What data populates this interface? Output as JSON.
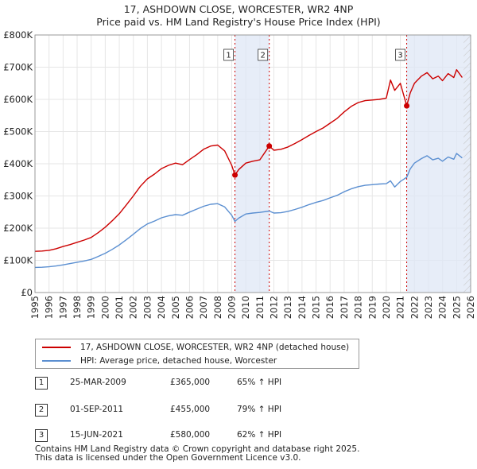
{
  "title": {
    "line1": "17, ASHDOWN CLOSE, WORCESTER, WR2 4NP",
    "line2": "Price paid vs. HM Land Registry's House Price Index (HPI)"
  },
  "chart_data": {
    "type": "line",
    "title": "17, ASHDOWN CLOSE, WORCESTER, WR2 4NP — Price paid vs. HM Land Registry's House Price Index (HPI)",
    "xlabel": "",
    "ylabel": "",
    "xlim": [
      1995,
      2026
    ],
    "ylim": [
      0,
      800000
    ],
    "grid": true,
    "y_ticks": [
      0,
      100000,
      200000,
      300000,
      400000,
      500000,
      600000,
      700000,
      800000
    ],
    "y_tick_labels": [
      "£0",
      "£100K",
      "£200K",
      "£300K",
      "£400K",
      "£500K",
      "£600K",
      "£700K",
      "£800K"
    ],
    "x_ticks": [
      1995,
      1996,
      1997,
      1998,
      1999,
      2000,
      2001,
      2002,
      2003,
      2004,
      2005,
      2006,
      2007,
      2008,
      2009,
      2010,
      2011,
      2012,
      2013,
      2014,
      2015,
      2016,
      2017,
      2018,
      2019,
      2020,
      2021,
      2022,
      2023,
      2024,
      2025,
      2026
    ],
    "x_tick_labels": [
      "1995",
      "1996",
      "1997",
      "1998",
      "1999",
      "2000",
      "2001",
      "2002",
      "2003",
      "2004",
      "2005",
      "2006",
      "2007",
      "2008",
      "2009",
      "2010",
      "2011",
      "2012",
      "2013",
      "2014",
      "2015",
      "2016",
      "2017",
      "2018",
      "2019",
      "2020",
      "2021",
      "2022",
      "2023",
      "2024",
      "2025",
      "2026"
    ],
    "shaded_regions": [
      {
        "from": 2009.23,
        "to": 2011.67
      },
      {
        "from": 2021.45,
        "to": 2026
      }
    ],
    "hatched_region": {
      "from": 2025.5,
      "to": 2026
    },
    "series": [
      {
        "name": "17, ASHDOWN CLOSE, WORCESTER, WR2 4NP (detached house)",
        "color": "#cc0000",
        "x": [
          1995,
          1995.5,
          1996,
          1996.5,
          1997,
          1997.5,
          1998,
          1998.5,
          1999,
          1999.5,
          2000,
          2000.5,
          2001,
          2001.5,
          2002,
          2002.5,
          2003,
          2003.5,
          2004,
          2004.5,
          2005,
          2005.5,
          2006,
          2006.5,
          2007,
          2007.5,
          2008,
          2008.5,
          2009,
          2009.23,
          2009.5,
          2010,
          2010.5,
          2011,
          2011.67,
          2012,
          2012.5,
          2013,
          2013.5,
          2014,
          2014.5,
          2015,
          2015.5,
          2016,
          2016.5,
          2017,
          2017.5,
          2018,
          2018.5,
          2019,
          2019.5,
          2020,
          2020.3,
          2020.6,
          2021,
          2021.45,
          2021.7,
          2022,
          2022.5,
          2022.9,
          2023.3,
          2023.7,
          2024,
          2024.4,
          2024.8,
          2025,
          2025.4
        ],
        "y": [
          128000,
          129000,
          131000,
          136000,
          143000,
          149000,
          156000,
          163000,
          171000,
          186000,
          203000,
          223000,
          245000,
          272000,
          300000,
          330000,
          353000,
          368000,
          385000,
          395000,
          402000,
          397000,
          413000,
          428000,
          445000,
          455000,
          458000,
          440000,
          395000,
          365000,
          382000,
          402000,
          408000,
          412000,
          455000,
          442000,
          445000,
          452000,
          463000,
          475000,
          488000,
          500000,
          511000,
          526000,
          541000,
          561000,
          578000,
          590000,
          596000,
          598000,
          600000,
          604000,
          660000,
          628000,
          650000,
          580000,
          620000,
          650000,
          672000,
          683000,
          664000,
          672000,
          658000,
          680000,
          668000,
          692000,
          668000
        ]
      },
      {
        "name": "HPI: Average price, detached house, Worcester",
        "color": "#5b8fd1",
        "x": [
          1995,
          1995.5,
          1996,
          1996.5,
          1997,
          1997.5,
          1998,
          1998.5,
          1999,
          1999.5,
          2000,
          2000.5,
          2001,
          2001.5,
          2002,
          2002.5,
          2003,
          2003.5,
          2004,
          2004.5,
          2005,
          2005.5,
          2006,
          2006.5,
          2007,
          2007.5,
          2008,
          2008.5,
          2009,
          2009.23,
          2009.5,
          2010,
          2010.5,
          2011,
          2011.67,
          2012,
          2012.5,
          2013,
          2013.5,
          2014,
          2014.5,
          2015,
          2015.5,
          2016,
          2016.5,
          2017,
          2017.5,
          2018,
          2018.5,
          2019,
          2019.5,
          2020,
          2020.3,
          2020.6,
          2021,
          2021.45,
          2021.7,
          2022,
          2022.5,
          2022.9,
          2023.3,
          2023.7,
          2024,
          2024.4,
          2024.8,
          2025,
          2025.4
        ],
        "y": [
          78000,
          78500,
          80000,
          82500,
          86000,
          90000,
          94000,
          98000,
          103000,
          112000,
          122000,
          134000,
          148000,
          164000,
          181000,
          199000,
          213000,
          222000,
          232000,
          238000,
          242000,
          240000,
          250000,
          259000,
          268000,
          274000,
          276000,
          266000,
          240000,
          221000,
          231000,
          244000,
          247000,
          249000,
          253000,
          247000,
          248000,
          252000,
          258000,
          265000,
          273000,
          280000,
          286000,
          294000,
          302000,
          313000,
          322000,
          329000,
          333000,
          335000,
          337000,
          338000,
          347000,
          328000,
          345000,
          358000,
          384000,
          402000,
          416000,
          425000,
          412000,
          417000,
          408000,
          421000,
          414000,
          432000,
          418000
        ]
      }
    ],
    "sales": [
      {
        "id": "1",
        "x": 2009.23,
        "y": 365000
      },
      {
        "id": "2",
        "x": 2011.67,
        "y": 455000
      },
      {
        "id": "3",
        "x": 2021.45,
        "y": 580000
      }
    ]
  },
  "legend": {
    "items": [
      {
        "label": "17, ASHDOWN CLOSE, WORCESTER, WR2 4NP (detached house)",
        "color": "#cc0000"
      },
      {
        "label": "HPI: Average price, detached house, Worcester",
        "color": "#5b8fd1"
      }
    ]
  },
  "table": {
    "rows": [
      {
        "num": "1",
        "date": "25-MAR-2009",
        "price": "£365,000",
        "hpi": "65% ↑ HPI"
      },
      {
        "num": "2",
        "date": "01-SEP-2011",
        "price": "£455,000",
        "hpi": "79% ↑ HPI"
      },
      {
        "num": "3",
        "date": "15-JUN-2021",
        "price": "£580,000",
        "hpi": "62% ↑ HPI"
      }
    ]
  },
  "footer": {
    "line1": "Contains HM Land Registry data © Crown copyright and database right 2025.",
    "line2": "This data is licensed under the Open Government Licence v3.0."
  }
}
